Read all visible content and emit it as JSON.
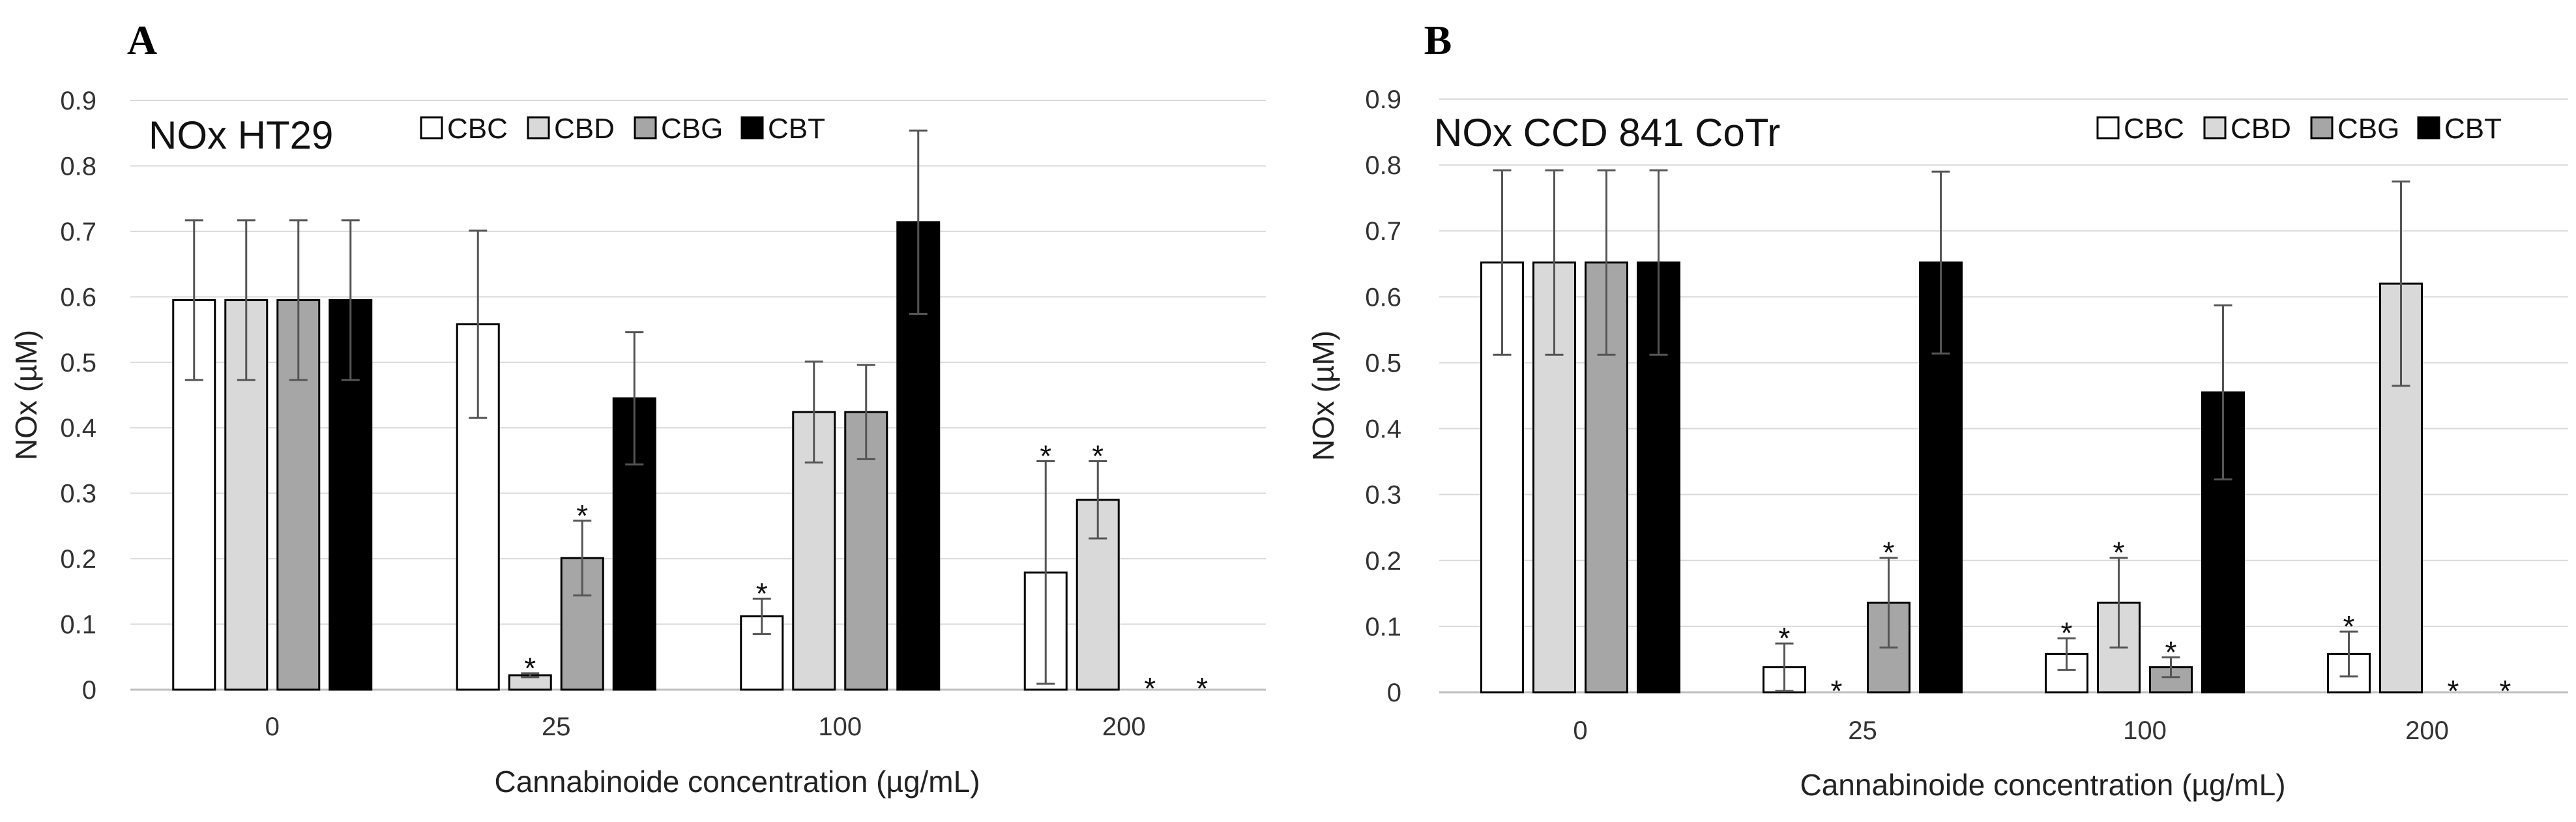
{
  "chart_data": [
    {
      "panel_letter": "A",
      "type": "bar",
      "title": "NOx HT29",
      "xlabel": "Cannabinoide concentration (µg/mL)",
      "ylabel": "NOx (µM)",
      "ylim": [
        0,
        0.9
      ],
      "y_ticks": [
        "0",
        "0.1",
        "0.2",
        "0.3",
        "0.4",
        "0.5",
        "0.6",
        "0.7",
        "0.8",
        "0.9"
      ],
      "grid": true,
      "legend_position": "top",
      "categories": [
        "0",
        "25",
        "100",
        "200"
      ],
      "series": [
        {
          "name": "CBC",
          "color": "#ffffff",
          "values": [
            0.595,
            0.558,
            0.112,
            0.179
          ],
          "errors": [
            0.122,
            0.143,
            0.027,
            0.17
          ],
          "significant": [
            false,
            false,
            true,
            true
          ]
        },
        {
          "name": "CBD",
          "color": "#d9d9d9",
          "values": [
            0.595,
            0.022,
            0.424,
            0.29
          ],
          "errors": [
            0.122,
            0.003,
            0.077,
            0.059
          ],
          "significant": [
            false,
            true,
            false,
            true
          ]
        },
        {
          "name": "CBG",
          "color": "#a6a6a6",
          "values": [
            0.595,
            0.201,
            0.424,
            0.0
          ],
          "errors": [
            0.122,
            0.057,
            0.072,
            0.0
          ],
          "significant": [
            false,
            true,
            false,
            true
          ]
        },
        {
          "name": "CBT",
          "color": "#000000",
          "values": [
            0.595,
            0.445,
            0.714,
            0.0
          ],
          "errors": [
            0.122,
            0.101,
            0.14,
            0.0
          ],
          "significant": [
            false,
            false,
            false,
            true
          ]
        }
      ],
      "annotation": "*"
    },
    {
      "panel_letter": "B",
      "type": "bar",
      "title": "NOx CCD 841 CoTr",
      "xlabel": "Cannabinoide concentration (µg/mL)",
      "ylabel": "NOx (µM)",
      "ylim": [
        0,
        0.9
      ],
      "y_ticks": [
        "0",
        "0.1",
        "0.2",
        "0.3",
        "0.4",
        "0.5",
        "0.6",
        "0.7",
        "0.8",
        "0.9"
      ],
      "grid": true,
      "legend_position": "top-right",
      "categories": [
        "0",
        "25",
        "100",
        "200"
      ],
      "series": [
        {
          "name": "CBC",
          "color": "#ffffff",
          "values": [
            0.652,
            0.038,
            0.058,
            0.058
          ],
          "errors": [
            0.14,
            0.036,
            0.024,
            0.034
          ],
          "significant": [
            false,
            true,
            true,
            true
          ]
        },
        {
          "name": "CBD",
          "color": "#d9d9d9",
          "values": [
            0.652,
            0.0,
            0.136,
            0.62
          ],
          "errors": [
            0.14,
            0.0,
            0.068,
            0.155
          ],
          "significant": [
            false,
            true,
            true,
            false
          ]
        },
        {
          "name": "CBG",
          "color": "#a6a6a6",
          "values": [
            0.652,
            0.136,
            0.038,
            0.0
          ],
          "errors": [
            0.14,
            0.068,
            0.015,
            0.0
          ],
          "significant": [
            false,
            true,
            true,
            true
          ]
        },
        {
          "name": "CBT",
          "color": "#000000",
          "values": [
            0.652,
            0.652,
            0.455,
            0.0
          ],
          "errors": [
            0.14,
            0.138,
            0.132,
            0.0
          ],
          "significant": [
            false,
            false,
            false,
            true
          ]
        }
      ],
      "annotation": "*"
    }
  ]
}
